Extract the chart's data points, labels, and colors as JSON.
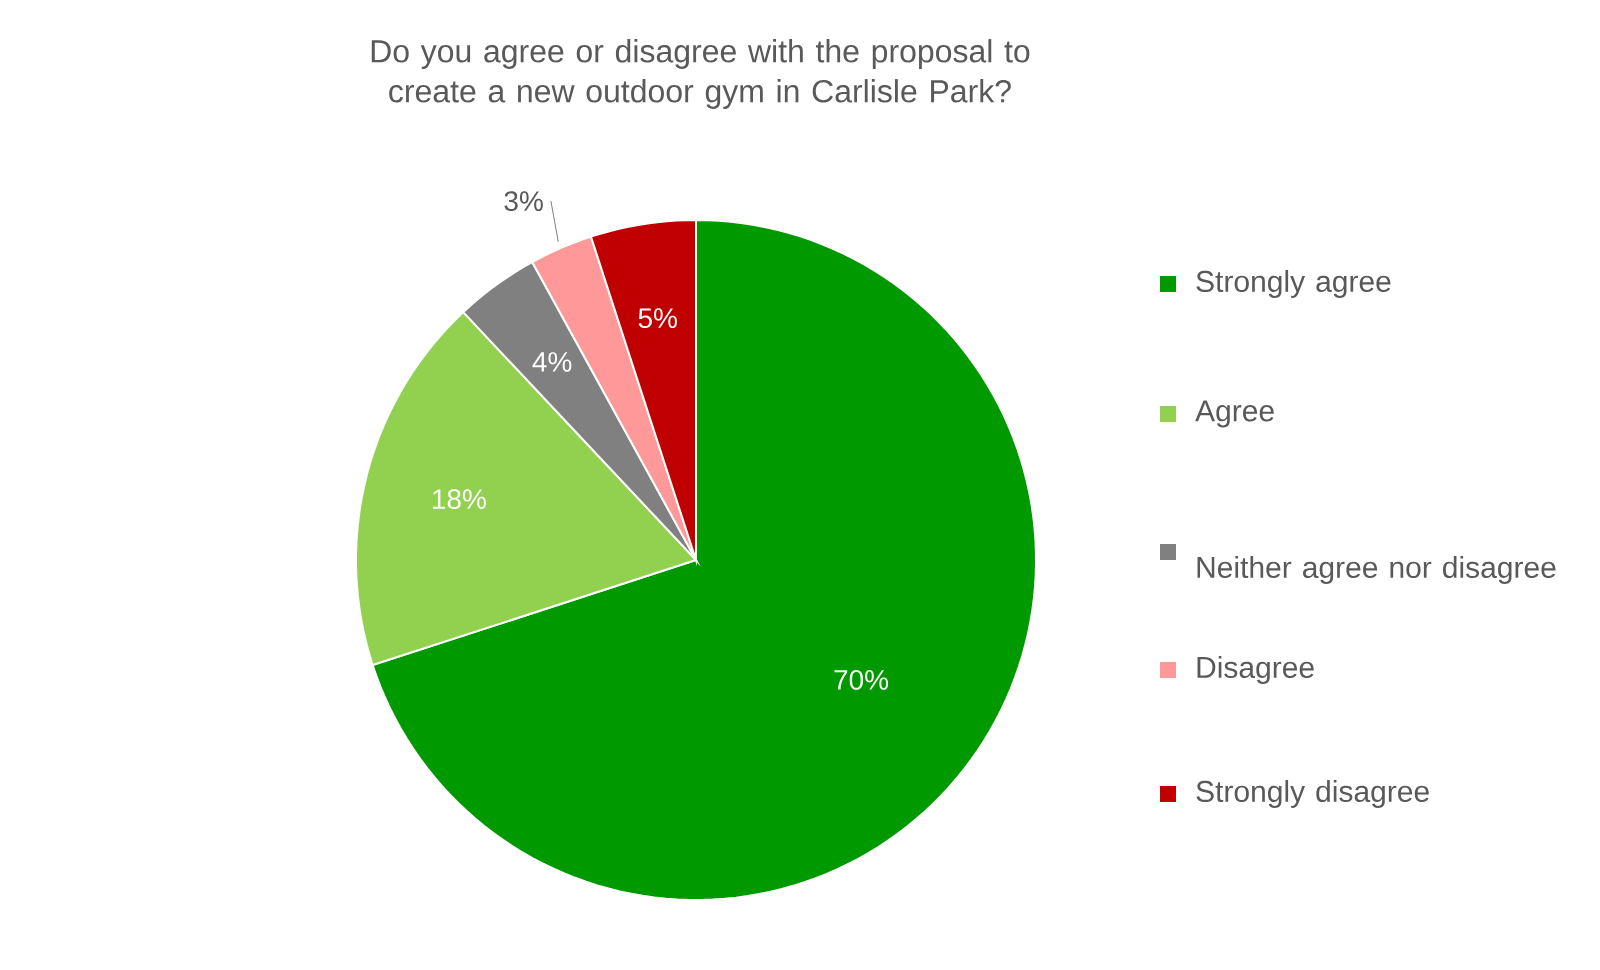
{
  "chart_data": {
    "type": "pie",
    "title": "Do you agree or disagree with the proposal to create a new outdoor gym in Carlisle Park?",
    "categories": [
      "Strongly agree",
      "Agree",
      "Neither agree nor disagree",
      "Disagree",
      "Strongly disagree"
    ],
    "values": [
      70,
      18,
      4,
      3,
      5
    ],
    "value_labels": [
      "70%",
      "18%",
      "4%",
      "3%",
      "5%"
    ],
    "colors": [
      "#009900",
      "#92d050",
      "#808080",
      "#ff9999",
      "#c00000"
    ],
    "legend": "right"
  }
}
